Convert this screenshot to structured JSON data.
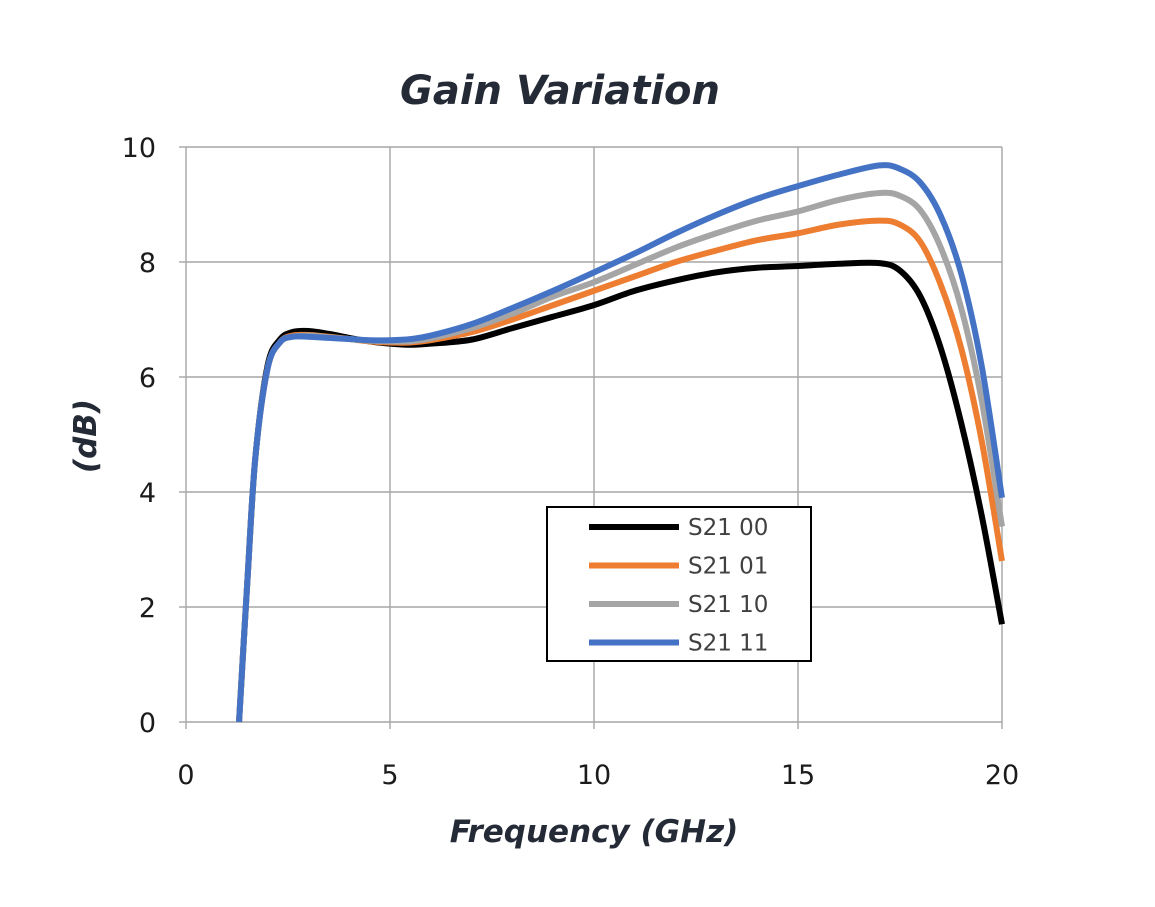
{
  "chart_data": {
    "type": "line",
    "title": "Gain Variation",
    "xlabel": "Frequency (GHz)",
    "ylabel": "(dB)",
    "xlim": [
      0,
      20
    ],
    "ylim": [
      0,
      10
    ],
    "xticks": [
      0,
      5,
      10,
      15,
      20
    ],
    "yticks": [
      0,
      2,
      4,
      6,
      8,
      10
    ],
    "xtick_labels": [
      "0",
      "5",
      "10",
      "15",
      "20"
    ],
    "ytick_labels": [
      "0",
      "2",
      "4",
      "6",
      "8",
      "10"
    ],
    "grid": true,
    "legend_position": "center-bottom",
    "series": [
      {
        "name": "S21 00",
        "color": "#000000",
        "x": [
          1.3,
          1.5,
          1.7,
          2.0,
          2.3,
          2.6,
          3.0,
          3.5,
          4.0,
          4.5,
          5.0,
          5.5,
          6.0,
          7.0,
          8.0,
          9.0,
          10.0,
          11.0,
          12.0,
          13.0,
          14.0,
          15.0,
          16.0,
          17.0,
          17.5,
          18.0,
          18.5,
          19.0,
          19.5,
          20.0
        ],
        "y": [
          0.0,
          2.4,
          4.6,
          6.2,
          6.65,
          6.78,
          6.8,
          6.75,
          6.68,
          6.62,
          6.58,
          6.56,
          6.58,
          6.65,
          6.85,
          7.05,
          7.25,
          7.5,
          7.68,
          7.82,
          7.9,
          7.93,
          7.97,
          7.98,
          7.85,
          7.4,
          6.5,
          5.2,
          3.6,
          1.7
        ]
      },
      {
        "name": "S21 01",
        "color": "#ed7d31",
        "x": [
          1.3,
          1.5,
          1.7,
          2.0,
          2.3,
          2.6,
          3.0,
          3.5,
          4.0,
          4.5,
          5.0,
          5.5,
          6.0,
          7.0,
          8.0,
          9.0,
          10.0,
          11.0,
          12.0,
          13.0,
          14.0,
          15.0,
          16.0,
          17.0,
          17.5,
          18.0,
          18.5,
          19.0,
          19.5,
          20.0
        ],
        "y": [
          0.0,
          2.4,
          4.6,
          6.15,
          6.6,
          6.72,
          6.73,
          6.7,
          6.66,
          6.62,
          6.6,
          6.6,
          6.64,
          6.78,
          7.0,
          7.25,
          7.5,
          7.75,
          8.0,
          8.2,
          8.38,
          8.5,
          8.65,
          8.72,
          8.65,
          8.35,
          7.6,
          6.5,
          4.9,
          2.8
        ]
      },
      {
        "name": "S21 10",
        "color": "#a5a5a5",
        "x": [
          1.3,
          1.5,
          1.7,
          2.0,
          2.3,
          2.6,
          3.0,
          3.5,
          4.0,
          4.5,
          5.0,
          5.5,
          6.0,
          7.0,
          8.0,
          9.0,
          10.0,
          11.0,
          12.0,
          13.0,
          14.0,
          15.0,
          16.0,
          17.0,
          17.5,
          18.0,
          18.5,
          19.0,
          19.5,
          20.0
        ],
        "y": [
          0.0,
          2.4,
          4.6,
          6.15,
          6.6,
          6.7,
          6.72,
          6.69,
          6.66,
          6.63,
          6.62,
          6.62,
          6.67,
          6.85,
          7.1,
          7.4,
          7.65,
          7.95,
          8.25,
          8.5,
          8.72,
          8.88,
          9.08,
          9.2,
          9.15,
          8.9,
          8.25,
          7.2,
          5.6,
          3.4
        ]
      },
      {
        "name": "S21 11",
        "color": "#4472c4",
        "x": [
          1.3,
          1.5,
          1.7,
          2.0,
          2.3,
          2.6,
          3.0,
          3.5,
          4.0,
          4.5,
          5.0,
          5.5,
          6.0,
          7.0,
          8.0,
          9.0,
          10.0,
          11.0,
          12.0,
          13.0,
          14.0,
          15.0,
          16.0,
          17.0,
          17.5,
          18.0,
          18.5,
          19.0,
          19.5,
          20.0
        ],
        "y": [
          0.0,
          2.4,
          4.6,
          6.15,
          6.6,
          6.7,
          6.7,
          6.68,
          6.66,
          6.64,
          6.64,
          6.66,
          6.72,
          6.92,
          7.2,
          7.5,
          7.82,
          8.15,
          8.5,
          8.82,
          9.1,
          9.32,
          9.52,
          9.68,
          9.62,
          9.38,
          8.8,
          7.8,
          6.2,
          3.9
        ]
      }
    ]
  }
}
